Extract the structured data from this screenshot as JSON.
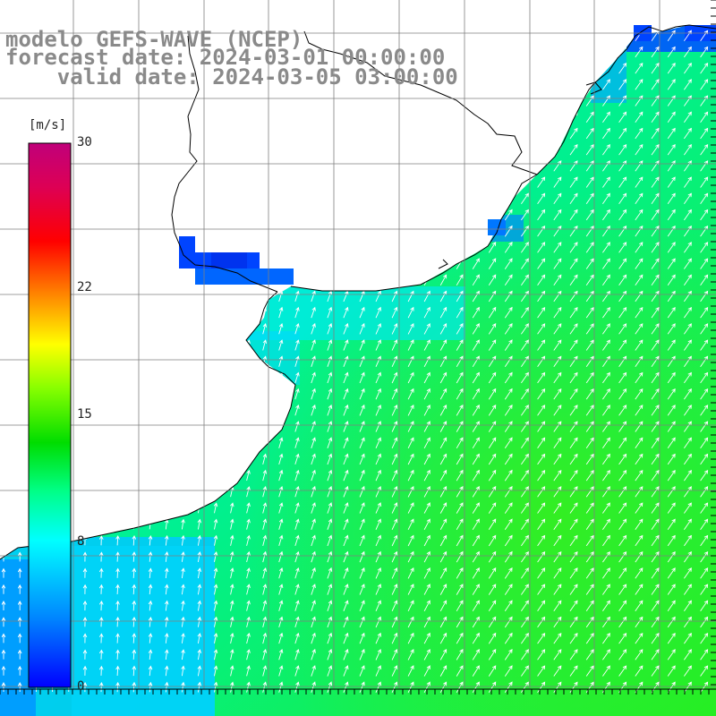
{
  "title": {
    "line1": "modelo GEFS-WAVE (NCEP)",
    "line2": "forecast date: 2024-03-01 00:00:00",
    "line3": "    valid date: 2024-03-05 03:00:00"
  },
  "colorbar": {
    "unit": "[m/s]",
    "min": 0,
    "max": 30,
    "tick_labels": [
      "30",
      "22",
      "15",
      "8",
      "0"
    ],
    "tick_values": [
      30,
      22,
      15,
      8,
      0
    ],
    "stops": [
      "#0000ff",
      "#0088ff",
      "#00ffff",
      "#00ff88",
      "#00dd00",
      "#88ff00",
      "#ffff00",
      "#ff8800",
      "#ff0000",
      "#dd0055",
      "#c0007a"
    ]
  },
  "colors": {
    "land": "#ffffff",
    "coast": "#000000",
    "grid": "#7f7f7f",
    "arrow": "#ffffff"
  },
  "field": {
    "variable": "wind speed",
    "unit": "m/s",
    "general_direction": "from SW to NE",
    "strong_region_color": "#33ee33",
    "weak_region_color": "#0066ff"
  }
}
